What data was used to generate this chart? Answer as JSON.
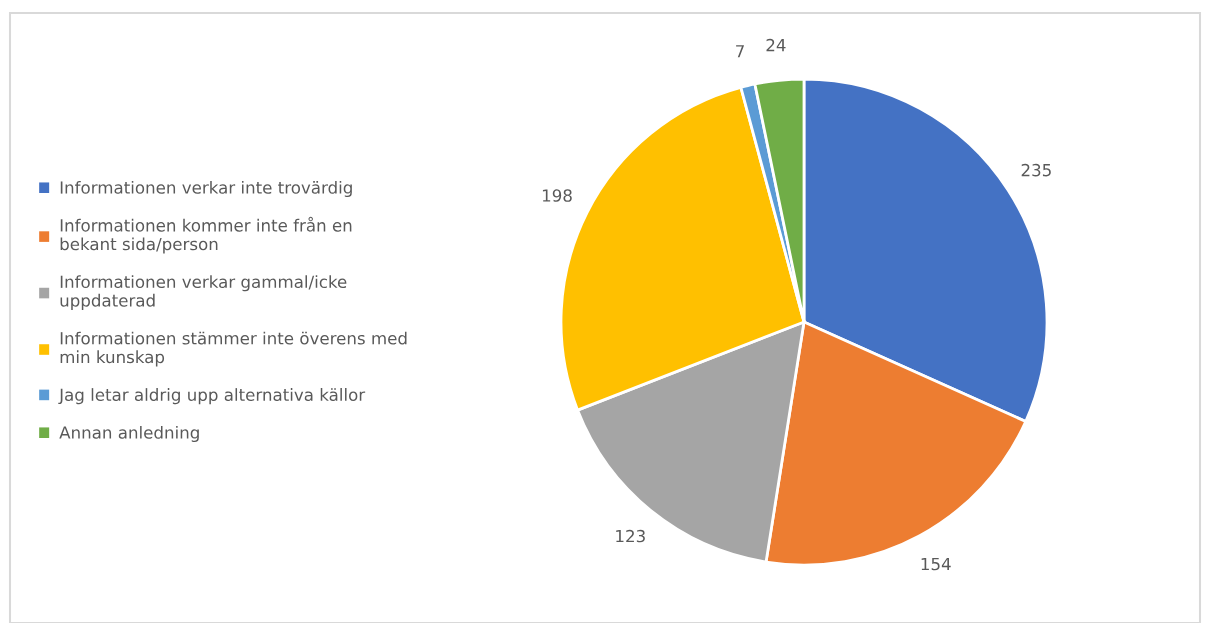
{
  "chart_data": {
    "type": "pie",
    "categories": [
      "Informationen verkar inte trovärdig",
      "Informationen kommer inte från en bekant sida/person",
      "Informationen verkar gammal/icke uppdaterad",
      "Informationen stämmer inte överens med min kunskap",
      "Jag letar aldrig upp alternativa källor",
      "Annan anledning"
    ],
    "values": [
      235,
      154,
      123,
      198,
      7,
      24
    ],
    "colors": [
      "#4472c4",
      "#ed7d31",
      "#a5a5a5",
      "#ffc000",
      "#5b9bd5",
      "#70ad47"
    ],
    "data_labels": true,
    "legend": "left"
  }
}
